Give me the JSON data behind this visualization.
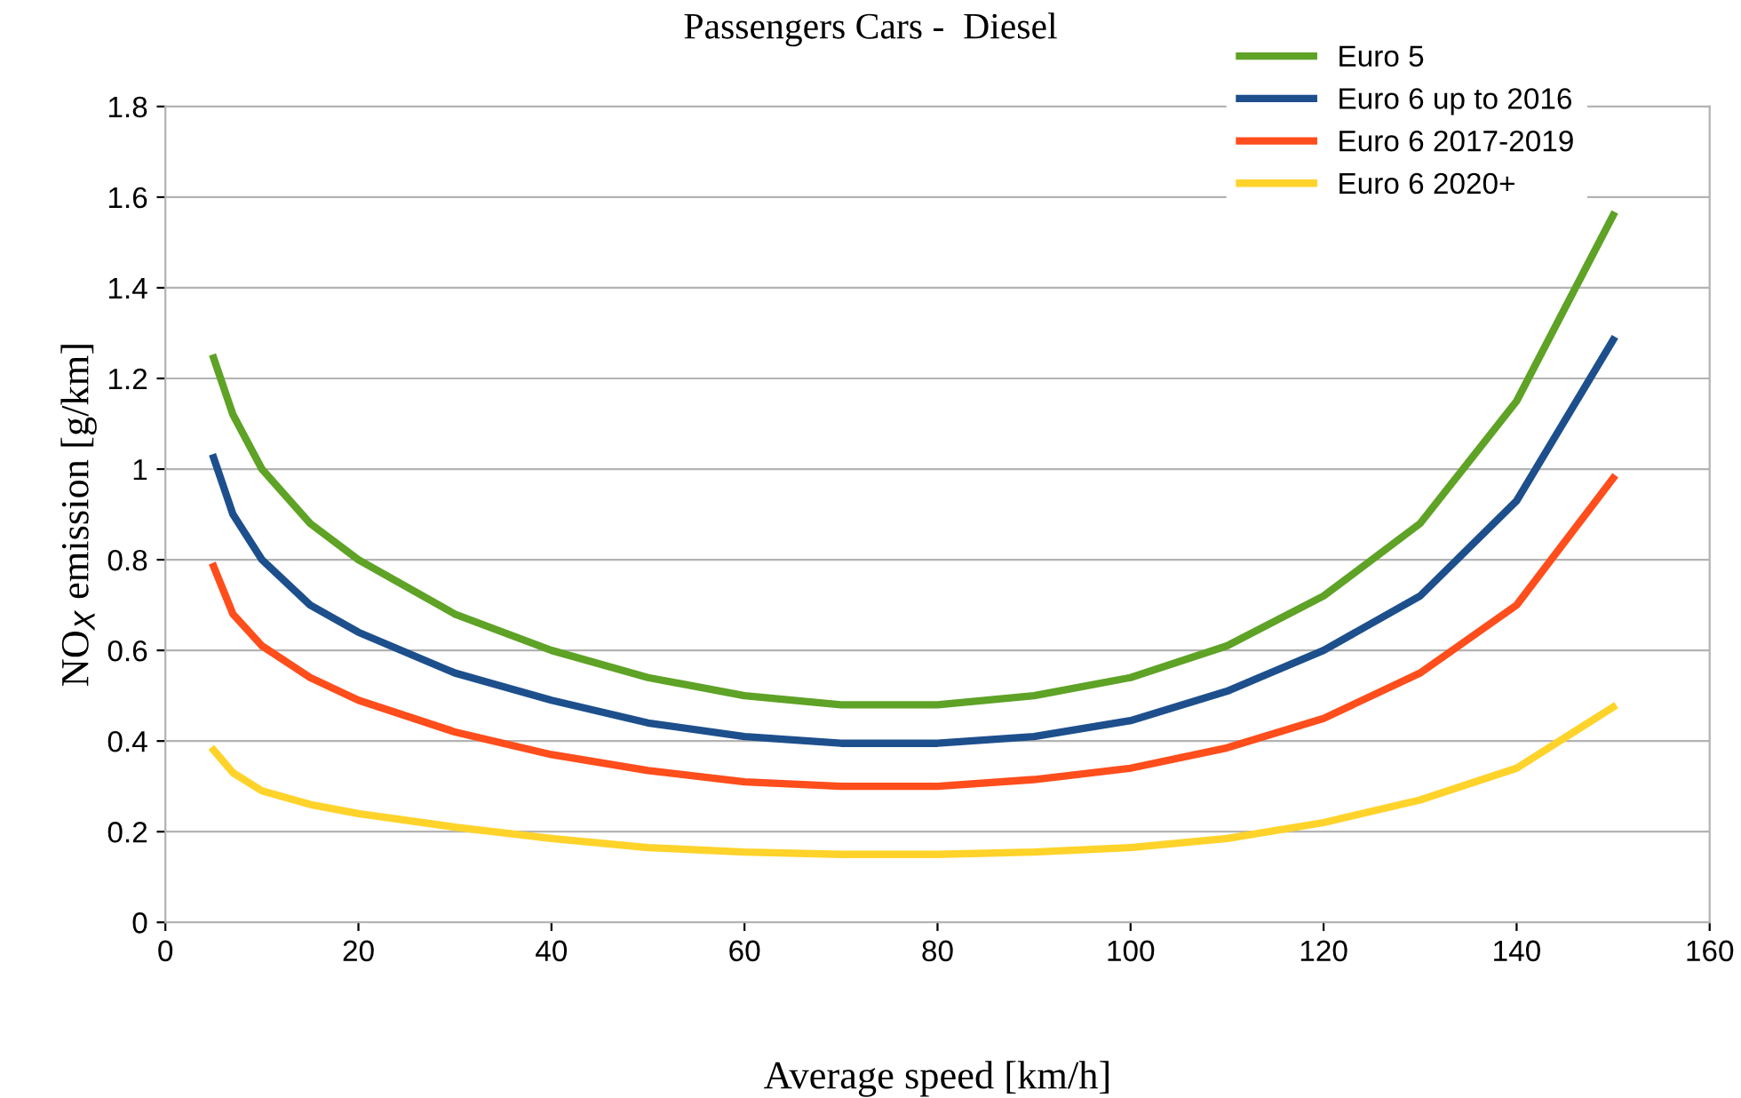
{
  "chart_data": {
    "type": "line",
    "title": "Passengers Cars -  Diesel",
    "xlabel": "Average speed [km/h]",
    "ylabel": "NO$_{X}$ emission [g/km]",
    "x": [
      5,
      7,
      10,
      15,
      20,
      30,
      40,
      50,
      60,
      70,
      80,
      90,
      100,
      110,
      120,
      130,
      140,
      150
    ],
    "series": [
      {
        "name": "Euro 5",
        "color": "#5ea226",
        "values": [
          1.245,
          1.12,
          1.0,
          0.88,
          0.8,
          0.68,
          0.6,
          0.54,
          0.5,
          0.48,
          0.48,
          0.5,
          0.54,
          0.61,
          0.72,
          0.88,
          1.15,
          1.56
        ]
      },
      {
        "name": "Euro 6 up to 2016",
        "color": "#1d4f8c",
        "values": [
          1.025,
          0.9,
          0.8,
          0.7,
          0.64,
          0.55,
          0.49,
          0.44,
          0.41,
          0.395,
          0.395,
          0.41,
          0.445,
          0.51,
          0.6,
          0.72,
          0.93,
          1.285
        ]
      },
      {
        "name": "Euro 6 2017-2019",
        "color": "#ff4d1c",
        "values": [
          0.785,
          0.68,
          0.61,
          0.54,
          0.49,
          0.42,
          0.37,
          0.335,
          0.31,
          0.3,
          0.3,
          0.315,
          0.34,
          0.385,
          0.45,
          0.55,
          0.7,
          0.98
        ]
      },
      {
        "name": "Euro 6 2020+",
        "color": "#ffd32a",
        "values": [
          0.38,
          0.33,
          0.29,
          0.26,
          0.24,
          0.21,
          0.185,
          0.165,
          0.155,
          0.15,
          0.15,
          0.155,
          0.165,
          0.185,
          0.22,
          0.27,
          0.34,
          0.475
        ]
      }
    ],
    "xlim": [
      0,
      160
    ],
    "xticks": [
      0,
      20,
      40,
      60,
      80,
      100,
      120,
      140,
      160
    ],
    "ylim": [
      0,
      1.8
    ],
    "yticks": [
      0,
      0.2,
      0.4,
      0.6,
      0.8,
      1,
      1.2,
      1.4,
      1.6,
      1.8
    ],
    "grid": "y",
    "legend": "top right"
  }
}
